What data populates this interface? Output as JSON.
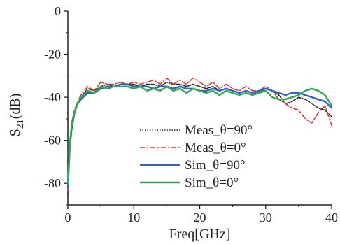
{
  "chart_data": {
    "type": "line",
    "title": "",
    "xlabel": "Freq[GHz]",
    "ylabel": "S21(dB)",
    "ylabel_main": "S",
    "ylabel_sub": "21",
    "ylabel_unit": "(dB)",
    "xlim": [
      0,
      40
    ],
    "ylim": [
      -90,
      0
    ],
    "xticks": [
      0,
      10,
      20,
      30,
      40
    ],
    "yticks": [
      0,
      -20,
      -40,
      -60,
      -80
    ],
    "grid": false,
    "legend_position": "lower-right",
    "series": [
      {
        "name": "Meas_θ=90°",
        "color": "#222222",
        "style": "dotted",
        "x": [
          0,
          0.3,
          0.6,
          1,
          1.5,
          2,
          3,
          4,
          5,
          6,
          7,
          8,
          9,
          10,
          11,
          12,
          13,
          14,
          15,
          16,
          17,
          18,
          19,
          20,
          21,
          22,
          23,
          24,
          25,
          26,
          27,
          28,
          29,
          30,
          31,
          32,
          33,
          34,
          35,
          36,
          37,
          38,
          39,
          40
        ],
        "y": [
          -85,
          -65,
          -55,
          -48,
          -43,
          -40,
          -36,
          -37,
          -35,
          -34,
          -35,
          -34,
          -34,
          -34,
          -35,
          -34,
          -34,
          -35,
          -33,
          -34,
          -34,
          -35,
          -34,
          -35,
          -36,
          -35,
          -37,
          -36,
          -37,
          -38,
          -37,
          -38,
          -38,
          -36,
          -37,
          -39,
          -43,
          -42,
          -40,
          -41,
          -43,
          -45,
          -46,
          -49
        ]
      },
      {
        "name": "Meas_θ=0°",
        "color": "#e8312e",
        "style": "dashdot",
        "x": [
          0,
          0.3,
          0.6,
          1,
          1.5,
          2,
          3,
          4,
          5,
          6,
          7,
          8,
          9,
          10,
          11,
          12,
          13,
          14,
          15,
          16,
          17,
          18,
          19,
          20,
          21,
          22,
          23,
          24,
          25,
          26,
          27,
          28,
          29,
          30,
          31,
          32,
          33,
          34,
          35,
          36,
          37,
          38,
          39,
          40
        ],
        "y": [
          -84,
          -62,
          -52,
          -46,
          -42,
          -39,
          -35,
          -37,
          -33,
          -34,
          -34,
          -33,
          -34,
          -33,
          -34,
          -33,
          -32,
          -34,
          -31,
          -34,
          -32,
          -34,
          -31,
          -33,
          -35,
          -33,
          -36,
          -34,
          -36,
          -37,
          -35,
          -37,
          -37,
          -35,
          -37,
          -41,
          -43,
          -45,
          -46,
          -50,
          -52,
          -47,
          -44,
          -53
        ]
      },
      {
        "name": "Sim_θ=90°",
        "color": "#2c63c6",
        "style": "solid",
        "x": [
          0,
          0.3,
          0.6,
          1,
          1.5,
          2,
          3,
          4,
          5,
          6,
          7,
          8,
          9,
          10,
          11,
          12,
          13,
          14,
          15,
          16,
          17,
          18,
          19,
          20,
          21,
          22,
          23,
          24,
          25,
          26,
          27,
          28,
          29,
          30,
          31,
          32,
          33,
          34,
          35,
          36,
          37,
          38,
          39,
          40
        ],
        "y": [
          -82,
          -63,
          -53,
          -47,
          -43,
          -41,
          -38,
          -38,
          -36,
          -35,
          -35,
          -34,
          -34,
          -35,
          -35,
          -35,
          -36,
          -35,
          -35,
          -36,
          -35,
          -36,
          -36,
          -37,
          -37,
          -36,
          -37,
          -36,
          -37,
          -38,
          -37,
          -38,
          -37,
          -36,
          -37,
          -38,
          -39,
          -38,
          -38,
          -39,
          -40,
          -41,
          -42,
          -45
        ]
      },
      {
        "name": "Sim_θ=0°",
        "color": "#2fa84f",
        "style": "solid",
        "x": [
          0,
          0.3,
          0.6,
          1,
          1.5,
          2,
          3,
          4,
          5,
          6,
          7,
          8,
          9,
          10,
          11,
          12,
          13,
          14,
          15,
          16,
          17,
          18,
          19,
          20,
          21,
          22,
          23,
          24,
          25,
          26,
          27,
          28,
          29,
          30,
          31,
          32,
          33,
          34,
          35,
          36,
          37,
          38,
          39,
          40
        ],
        "y": [
          -80,
          -62,
          -52,
          -47,
          -43,
          -40,
          -37,
          -38,
          -35,
          -36,
          -35,
          -35,
          -35,
          -36,
          -35,
          -37,
          -36,
          -37,
          -35,
          -37,
          -36,
          -38,
          -36,
          -37,
          -38,
          -37,
          -39,
          -37,
          -38,
          -39,
          -38,
          -39,
          -38,
          -37,
          -40,
          -41,
          -41,
          -40,
          -39,
          -37,
          -36,
          -37,
          -39,
          -44
        ]
      }
    ]
  }
}
